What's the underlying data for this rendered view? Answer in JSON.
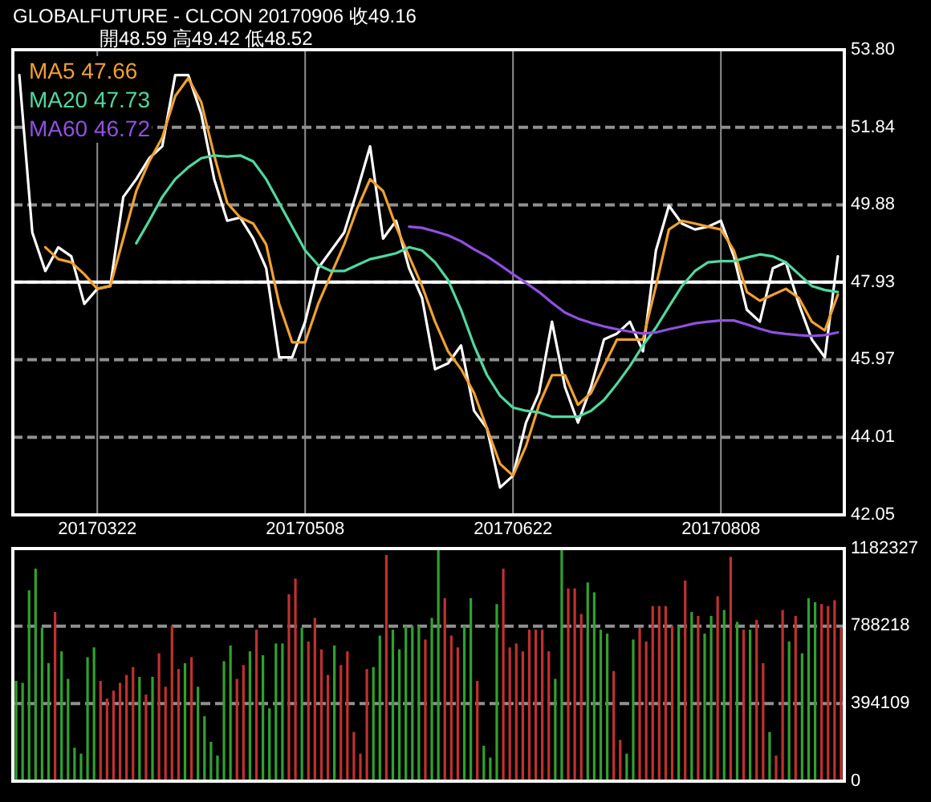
{
  "chart_data": [
    {
      "type": "line",
      "title": "GLOBALFUTURE - CLCON  20170906  收49.16",
      "subtitle": "開48.59  高49.42  低48.52",
      "categories": [
        null,
        null,
        null,
        null,
        null,
        null,
        "20170322",
        null,
        null,
        null,
        null,
        null,
        null,
        null,
        null,
        null,
        null,
        null,
        null,
        null,
        null,
        null,
        "20170508",
        null,
        null,
        null,
        null,
        null,
        null,
        null,
        null,
        null,
        null,
        null,
        null,
        null,
        null,
        null,
        "20170622",
        null,
        null,
        null,
        null,
        null,
        null,
        null,
        null,
        null,
        null,
        null,
        null,
        null,
        null,
        null,
        "20170808",
        null,
        null,
        null,
        null,
        null,
        null,
        null,
        null,
        null
      ],
      "ylim": [
        42.05,
        53.8
      ],
      "yticks": [
        42.05,
        44.01,
        45.97,
        {
          "value": 47.93,
          "label": "47.93"
        },
        49.88,
        51.84,
        {
          "value": 53.8,
          "label": "53.80"
        }
      ],
      "grid": true,
      "legend": "top left",
      "ref_lines": [
        {
          "axis": "y",
          "value": 47.93,
          "color": "#ffffff",
          "line_style": "solid"
        }
      ],
      "series": [
        {
          "color": "#ffffff",
          "values": [
            53.16,
            49.18,
            48.21,
            48.81,
            48.58,
            47.38,
            47.76,
            47.83,
            50.08,
            50.53,
            51.06,
            51.36,
            53.16,
            53.16,
            52.18,
            50.53,
            49.48,
            49.56,
            49.03,
            48.28,
            46.03,
            46.03,
            46.93,
            48.28,
            48.73,
            49.18,
            50.23,
            51.36,
            49.03,
            49.48,
            48.28,
            47.53,
            45.73,
            45.88,
            46.33,
            44.68,
            44.23,
            42.74,
            43.04,
            44.38,
            45.13,
            46.93,
            45.28,
            44.38,
            45.28,
            46.48,
            46.63,
            46.93,
            46.18,
            48.73,
            49.86,
            49.41,
            49.26,
            49.33,
            49.48,
            48.58,
            47.23,
            46.93,
            48.28,
            48.43,
            47.38,
            46.48,
            46.03,
            48.58
          ]
        },
        {
          "name": "MA5 47.66",
          "color": "#f0a030",
          "values": [
            null,
            null,
            48.81,
            48.51,
            48.43,
            48.13,
            47.76,
            47.83,
            49.03,
            50.23,
            50.98,
            51.58,
            52.63,
            53.08,
            52.48,
            51.13,
            49.93,
            49.56,
            49.41,
            48.88,
            47.38,
            46.41,
            46.41,
            47.38,
            48.13,
            48.88,
            49.78,
            50.53,
            50.23,
            49.33,
            48.58,
            47.83,
            46.93,
            46.18,
            45.73,
            45.13,
            44.23,
            43.34,
            43.04,
            43.79,
            44.83,
            45.58,
            45.58,
            44.83,
            45.13,
            45.81,
            46.48,
            46.48,
            46.48,
            47.83,
            49.26,
            49.48,
            49.41,
            49.33,
            49.26,
            48.73,
            47.68,
            47.46,
            47.61,
            47.76,
            47.53,
            46.93,
            46.71,
            47.61
          ]
        },
        {
          "name": "MA20 47.73",
          "color": "#50d8a0",
          "values": [
            null,
            null,
            null,
            null,
            null,
            null,
            null,
            null,
            null,
            48.91,
            49.48,
            50.08,
            50.53,
            50.83,
            51.06,
            51.13,
            51.1,
            51.13,
            50.98,
            50.53,
            49.93,
            49.33,
            48.73,
            48.36,
            48.21,
            48.21,
            48.36,
            48.51,
            48.58,
            48.66,
            48.81,
            48.73,
            48.43,
            47.98,
            47.23,
            46.33,
            45.58,
            45.06,
            44.76,
            44.68,
            44.64,
            44.53,
            44.53,
            44.53,
            44.68,
            44.95,
            45.36,
            45.81,
            46.33,
            46.78,
            47.31,
            47.83,
            48.21,
            48.43,
            48.46,
            48.46,
            48.55,
            48.63,
            48.58,
            48.43,
            48.13,
            47.83,
            47.73,
            47.68
          ]
        },
        {
          "name": "MA60 46.72",
          "color": "#9050e0",
          "values": [
            null,
            null,
            null,
            null,
            null,
            null,
            null,
            null,
            null,
            null,
            null,
            null,
            null,
            null,
            null,
            null,
            null,
            null,
            null,
            null,
            null,
            null,
            null,
            null,
            null,
            null,
            null,
            null,
            null,
            null,
            49.33,
            49.3,
            49.21,
            49.11,
            48.96,
            48.76,
            48.58,
            48.36,
            48.13,
            47.91,
            47.68,
            47.41,
            47.16,
            47.01,
            46.9,
            46.81,
            46.74,
            46.68,
            46.63,
            46.66,
            46.74,
            46.81,
            46.89,
            46.93,
            46.96,
            46.96,
            46.86,
            46.75,
            46.66,
            46.62,
            46.59,
            46.57,
            46.59,
            46.66
          ]
        }
      ]
    },
    {
      "type": "bar",
      "tick_labels": "y",
      "grid": "y",
      "categories": [
        null,
        null,
        null,
        null,
        null,
        null,
        null,
        null,
        null,
        null,
        null,
        null,
        null,
        null,
        null,
        null,
        null,
        null,
        null,
        null,
        null,
        null,
        null,
        null,
        null,
        null,
        null,
        null,
        null,
        null,
        null,
        null,
        null,
        null,
        null,
        null,
        null,
        null,
        null,
        null,
        null,
        null,
        null,
        null,
        null,
        null,
        null,
        null,
        null,
        null,
        null,
        null,
        null,
        null,
        null,
        null,
        null,
        null,
        null,
        null,
        null,
        null,
        null,
        null,
        null,
        null,
        null,
        null,
        null,
        null,
        null,
        null,
        null,
        null,
        null,
        null,
        null,
        null,
        null,
        null,
        null,
        null,
        null,
        null,
        null,
        null,
        null,
        null,
        null,
        null,
        null,
        null,
        null,
        null,
        null,
        null,
        null,
        null,
        null,
        null,
        null,
        null,
        null,
        null,
        null,
        null,
        null,
        null,
        null,
        null,
        null,
        null,
        null,
        null,
        null,
        null,
        null,
        null,
        null,
        null,
        null,
        null,
        null,
        null,
        null,
        null,
        null,
        null
      ],
      "ylim": [
        0,
        1182327
      ],
      "yticks": [
        0,
        394109,
        788218,
        1182327
      ],
      "values": [
        510000,
        500000,
        970000,
        1080000,
        780000,
        600000,
        860000,
        660000,
        520000,
        170000,
        140000,
        630000,
        680000,
        510000,
        420000,
        460000,
        500000,
        540000,
        580000,
        530000,
        440000,
        530000,
        650000,
        480000,
        790000,
        570000,
        600000,
        630000,
        480000,
        330000,
        200000,
        130000,
        610000,
        690000,
        520000,
        590000,
        660000,
        770000,
        640000,
        370000,
        700000,
        700000,
        950000,
        1030000,
        780000,
        710000,
        830000,
        670000,
        540000,
        690000,
        590000,
        660000,
        250000,
        140000,
        570000,
        580000,
        740000,
        1150000,
        770000,
        670000,
        790000,
        790000,
        790000,
        720000,
        830000,
        1180000,
        930000,
        740000,
        680000,
        790000,
        930000,
        510000,
        180000,
        120000,
        900000,
        1080000,
        680000,
        700000,
        660000,
        770000,
        770000,
        770000,
        660000,
        520000,
        1180000,
        980000,
        980000,
        850000,
        1010000,
        960000,
        770000,
        750000,
        560000,
        210000,
        140000,
        720000,
        780000,
        710000,
        890000,
        890000,
        890000,
        790000,
        790000,
        1020000,
        860000,
        840000,
        750000,
        840000,
        940000,
        870000,
        1140000,
        810000,
        770000,
        770000,
        820000,
        600000,
        250000,
        130000,
        870000,
        710000,
        840000,
        650000,
        930000,
        910000,
        900000,
        890000,
        920000,
        780000
      ],
      "colors": [
        "#30a030",
        "#30a030",
        "#30a030",
        "#30a030",
        "#30a030",
        "#30a030",
        "#c03030",
        "#30a030",
        "#30a030",
        "#30a030",
        "#30a030",
        "#30a030",
        "#30a030",
        "#c03030",
        "#c03030",
        "#c03030",
        "#c03030",
        "#c03030",
        "#c03030",
        "#30a030",
        "#c03030",
        "#30a030",
        "#c03030",
        "#c03030",
        "#c03030",
        "#c03030",
        "#30a030",
        "#c03030",
        "#30a030",
        "#30a030",
        "#30a030",
        "#30a030",
        "#30a030",
        "#30a030",
        "#c03030",
        "#c03030",
        "#30a030",
        "#c03030",
        "#30a030",
        "#30a030",
        "#30a030",
        "#30a030",
        "#c03030",
        "#c03030",
        "#30a030",
        "#c03030",
        "#c03030",
        "#c03030",
        "#c03030",
        "#30a030",
        "#c03030",
        "#c03030",
        "#c03030",
        "#c03030",
        "#c03030",
        "#30a030",
        "#30a030",
        "#c03030",
        "#30a030",
        "#30a030",
        "#30a030",
        "#30a030",
        "#30a030",
        "#c03030",
        "#30a030",
        "#30a030",
        "#c03030",
        "#c03030",
        "#c03030",
        "#30a030",
        "#30a030",
        "#c03030",
        "#30a030",
        "#30a030",
        "#30a030",
        "#c03030",
        "#c03030",
        "#c03030",
        "#c03030",
        "#c03030",
        "#c03030",
        "#c03030",
        "#c03030",
        "#30a030",
        "#30a030",
        "#c03030",
        "#c03030",
        "#c03030",
        "#30a030",
        "#30a030",
        "#30a030",
        "#30a030",
        "#c03030",
        "#c03030",
        "#30a030",
        "#30a030",
        "#c03030",
        "#c03030",
        "#c03030",
        "#c03030",
        "#c03030",
        "#c03030",
        "#30a030",
        "#c03030",
        "#30a030",
        "#c03030",
        "#30a030",
        "#30a030",
        "#c03030",
        "#30a030",
        "#c03030",
        "#30a030",
        "#c03030",
        "#30a030",
        "#c03030",
        "#c03030",
        "#30a030",
        "#c03030",
        "#c03030",
        "#30a030",
        "#c03030",
        "#30a030",
        "#30a030",
        "#30a030",
        "#c03030",
        "#c03030",
        "#c03030",
        "#c03030"
      ]
    }
  ]
}
